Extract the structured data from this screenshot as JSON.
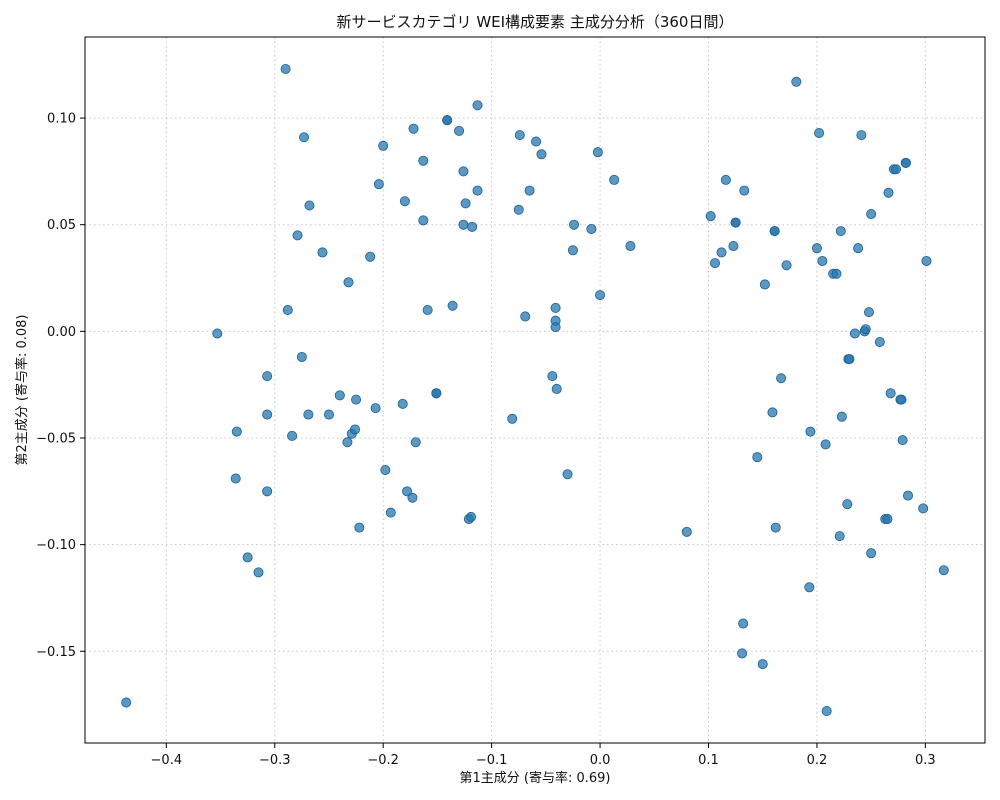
{
  "colors": {
    "points": "#1f77b4",
    "background": "#ffffff",
    "grid": "#c8c8c8"
  },
  "chart_data": {
    "type": "scatter",
    "title": "新サービスカテゴリ WEI構成要素 主成分分析（360日間）",
    "xlabel": "第1主成分 (寄与率: 0.69)",
    "ylabel": "第2主成分 (寄与率: 0.08)",
    "xlim": [
      -0.475,
      0.355
    ],
    "ylim": [
      -0.193,
      0.138
    ],
    "xticks": [
      -0.4,
      -0.3,
      -0.2,
      -0.1,
      0.0,
      0.1,
      0.2,
      0.3
    ],
    "xtick_labels": [
      "−0.4",
      "−0.3",
      "−0.2",
      "−0.1",
      "0.0",
      "0.1",
      "0.2",
      "0.3"
    ],
    "yticks": [
      0.1,
      0.05,
      0.0,
      -0.05,
      -0.1,
      -0.15
    ],
    "ytick_labels": [
      "0.10",
      "0.05",
      "0.00",
      "−0.05",
      "−0.10",
      "−0.15"
    ],
    "grid": true,
    "series": [
      {
        "points": [
          [
            -0.437,
            -0.174
          ],
          [
            -0.353,
            -0.001
          ],
          [
            -0.335,
            -0.047
          ],
          [
            -0.336,
            -0.069
          ],
          [
            -0.325,
            -0.106
          ],
          [
            -0.315,
            -0.113
          ],
          [
            -0.307,
            -0.021
          ],
          [
            -0.307,
            -0.039
          ],
          [
            -0.307,
            -0.075
          ],
          [
            -0.29,
            0.123
          ],
          [
            -0.288,
            0.01
          ],
          [
            -0.284,
            -0.049
          ],
          [
            -0.279,
            0.045
          ],
          [
            -0.275,
            -0.012
          ],
          [
            -0.273,
            0.091
          ],
          [
            -0.268,
            0.059
          ],
          [
            -0.269,
            -0.039
          ],
          [
            -0.256,
            0.037
          ],
          [
            -0.25,
            -0.039
          ],
          [
            -0.24,
            -0.03
          ],
          [
            -0.233,
            -0.052
          ],
          [
            -0.232,
            0.023
          ],
          [
            -0.229,
            -0.048
          ],
          [
            -0.226,
            -0.046
          ],
          [
            -0.225,
            -0.032
          ],
          [
            -0.222,
            -0.092
          ],
          [
            -0.212,
            0.035
          ],
          [
            -0.207,
            -0.036
          ],
          [
            -0.204,
            0.069
          ],
          [
            -0.2,
            0.087
          ],
          [
            -0.198,
            -0.065
          ],
          [
            -0.193,
            -0.085
          ],
          [
            -0.182,
            -0.034
          ],
          [
            -0.18,
            0.061
          ],
          [
            -0.178,
            -0.075
          ],
          [
            -0.173,
            -0.078
          ],
          [
            -0.172,
            0.095
          ],
          [
            -0.17,
            -0.052
          ],
          [
            -0.163,
            0.08
          ],
          [
            -0.163,
            0.052
          ],
          [
            -0.159,
            0.01
          ],
          [
            -0.151,
            -0.029
          ],
          [
            -0.151,
            -0.029
          ],
          [
            -0.141,
            0.099
          ],
          [
            -0.141,
            0.099
          ],
          [
            -0.136,
            0.012
          ],
          [
            -0.13,
            0.094
          ],
          [
            -0.126,
            0.05
          ],
          [
            -0.126,
            0.075
          ],
          [
            -0.124,
            0.06
          ],
          [
            -0.121,
            -0.088
          ],
          [
            -0.119,
            -0.087
          ],
          [
            -0.118,
            0.049
          ],
          [
            -0.113,
            0.066
          ],
          [
            -0.113,
            0.106
          ],
          [
            -0.081,
            -0.041
          ],
          [
            -0.075,
            0.057
          ],
          [
            -0.074,
            0.092
          ],
          [
            -0.069,
            0.007
          ],
          [
            -0.065,
            0.066
          ],
          [
            -0.059,
            0.089
          ],
          [
            -0.054,
            0.083
          ],
          [
            -0.044,
            -0.021
          ],
          [
            -0.041,
            0.011
          ],
          [
            -0.041,
            0.005
          ],
          [
            -0.041,
            0.002
          ],
          [
            -0.04,
            -0.027
          ],
          [
            -0.03,
            -0.067
          ],
          [
            -0.025,
            0.038
          ],
          [
            -0.024,
            0.05
          ],
          [
            -0.008,
            0.048
          ],
          [
            -0.002,
            0.084
          ],
          [
            0.0,
            0.017
          ],
          [
            0.013,
            0.071
          ],
          [
            0.028,
            0.04
          ],
          [
            0.08,
            -0.094
          ],
          [
            0.102,
            0.054
          ],
          [
            0.106,
            0.032
          ],
          [
            0.112,
            0.037
          ],
          [
            0.116,
            0.071
          ],
          [
            0.123,
            0.04
          ],
          [
            0.125,
            0.051
          ],
          [
            0.125,
            0.051
          ],
          [
            0.131,
            -0.151
          ],
          [
            0.132,
            -0.137
          ],
          [
            0.133,
            0.066
          ],
          [
            0.145,
            -0.059
          ],
          [
            0.15,
            -0.156
          ],
          [
            0.152,
            0.022
          ],
          [
            0.159,
            -0.038
          ],
          [
            0.161,
            0.047
          ],
          [
            0.161,
            0.047
          ],
          [
            0.162,
            -0.092
          ],
          [
            0.167,
            -0.022
          ],
          [
            0.172,
            0.031
          ],
          [
            0.181,
            0.117
          ],
          [
            0.193,
            -0.12
          ],
          [
            0.194,
            -0.047
          ],
          [
            0.2,
            0.039
          ],
          [
            0.202,
            0.093
          ],
          [
            0.205,
            0.033
          ],
          [
            0.208,
            -0.053
          ],
          [
            0.209,
            -0.178
          ],
          [
            0.215,
            0.027
          ],
          [
            0.218,
            0.027
          ],
          [
            0.221,
            -0.096
          ],
          [
            0.222,
            0.047
          ],
          [
            0.223,
            -0.04
          ],
          [
            0.228,
            -0.081
          ],
          [
            0.229,
            -0.013
          ],
          [
            0.23,
            -0.013
          ],
          [
            0.235,
            -0.001
          ],
          [
            0.238,
            0.039
          ],
          [
            0.241,
            0.092
          ],
          [
            0.244,
            0.0
          ],
          [
            0.245,
            0.001
          ],
          [
            0.248,
            0.009
          ],
          [
            0.25,
            0.055
          ],
          [
            0.25,
            -0.104
          ],
          [
            0.258,
            -0.005
          ],
          [
            0.263,
            -0.088
          ],
          [
            0.265,
            -0.088
          ],
          [
            0.266,
            0.065
          ],
          [
            0.268,
            -0.029
          ],
          [
            0.271,
            0.076
          ],
          [
            0.273,
            0.076
          ],
          [
            0.277,
            -0.032
          ],
          [
            0.278,
            -0.032
          ],
          [
            0.279,
            -0.051
          ],
          [
            0.282,
            0.079
          ],
          [
            0.282,
            0.079
          ],
          [
            0.284,
            -0.077
          ],
          [
            0.298,
            -0.083
          ],
          [
            0.301,
            0.033
          ],
          [
            0.317,
            -0.112
          ]
        ]
      }
    ]
  }
}
